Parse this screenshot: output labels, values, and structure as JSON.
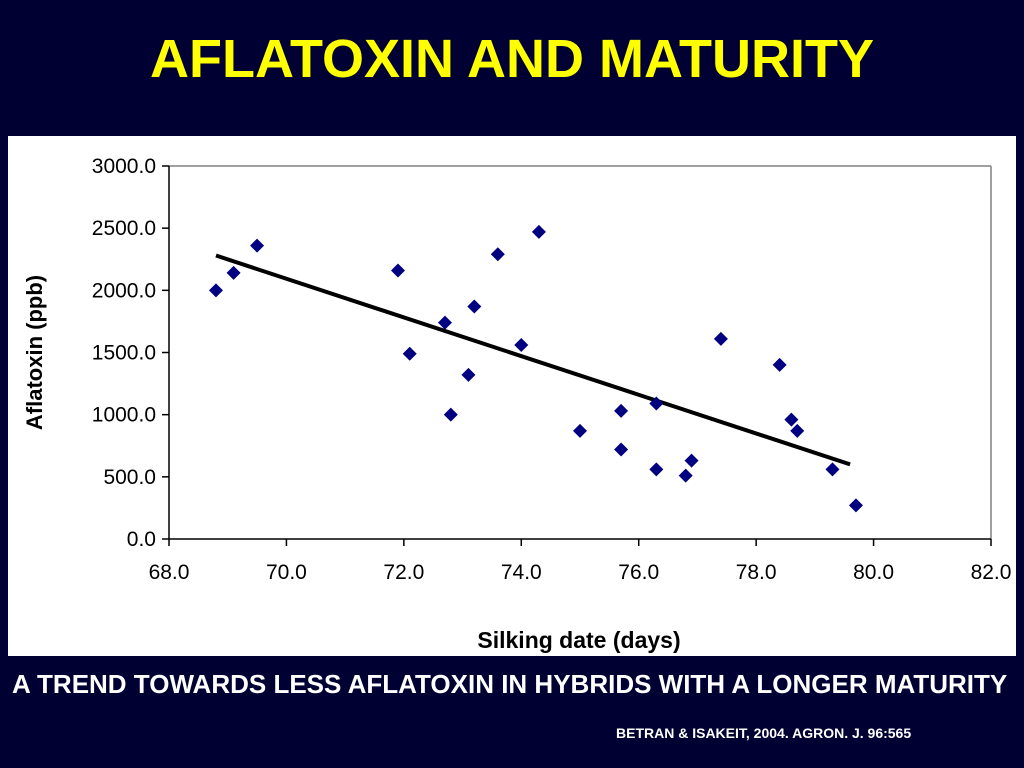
{
  "slide": {
    "title": "AFLATOXIN AND MATURITY",
    "caption": "A TREND TOWARDS LESS AFLATOXIN IN HYBRIDS WITH A LONGER MATURITY",
    "citation": "BETRAN & ISAKEIT, 2004. AGRON. J. 96:565",
    "colors": {
      "background": "#000033",
      "title": "#FFFF00",
      "text": "#FFFFFF",
      "panel": "#FFFFFF",
      "marker": "#000080",
      "trendline": "#000000",
      "plot_border": "#808080"
    }
  },
  "chart_data": {
    "type": "scatter",
    "title": "",
    "xlabel": "Silking date (days)",
    "ylabel": "Aflatoxin (ppb)",
    "xlim": [
      68.0,
      82.0
    ],
    "ylim": [
      0.0,
      3000.0
    ],
    "x_ticks": [
      "68.0",
      "70.0",
      "72.0",
      "74.0",
      "76.0",
      "78.0",
      "80.0",
      "82.0"
    ],
    "y_ticks": [
      "0.0",
      "500.0",
      "1000.0",
      "1500.0",
      "2000.0",
      "2500.0",
      "3000.0"
    ],
    "grid": false,
    "legend": "none",
    "marker": "diamond",
    "points": [
      {
        "x": 68.8,
        "y": 2000
      },
      {
        "x": 69.1,
        "y": 2140
      },
      {
        "x": 69.5,
        "y": 2360
      },
      {
        "x": 71.9,
        "y": 2160
      },
      {
        "x": 72.1,
        "y": 1490
      },
      {
        "x": 72.7,
        "y": 1740
      },
      {
        "x": 72.8,
        "y": 1000
      },
      {
        "x": 73.1,
        "y": 1320
      },
      {
        "x": 73.2,
        "y": 1870
      },
      {
        "x": 73.6,
        "y": 2290
      },
      {
        "x": 74.0,
        "y": 1560
      },
      {
        "x": 74.3,
        "y": 2470
      },
      {
        "x": 75.0,
        "y": 870
      },
      {
        "x": 75.7,
        "y": 1030
      },
      {
        "x": 75.7,
        "y": 720
      },
      {
        "x": 76.3,
        "y": 560
      },
      {
        "x": 76.3,
        "y": 1090
      },
      {
        "x": 76.8,
        "y": 510
      },
      {
        "x": 76.9,
        "y": 630
      },
      {
        "x": 77.4,
        "y": 1610
      },
      {
        "x": 78.4,
        "y": 1400
      },
      {
        "x": 78.6,
        "y": 960
      },
      {
        "x": 78.7,
        "y": 870
      },
      {
        "x": 79.3,
        "y": 560
      },
      {
        "x": 79.7,
        "y": 270
      }
    ],
    "trendline": {
      "type": "linear",
      "x": [
        68.8,
        79.6
      ],
      "y": [
        2280,
        600
      ]
    }
  }
}
